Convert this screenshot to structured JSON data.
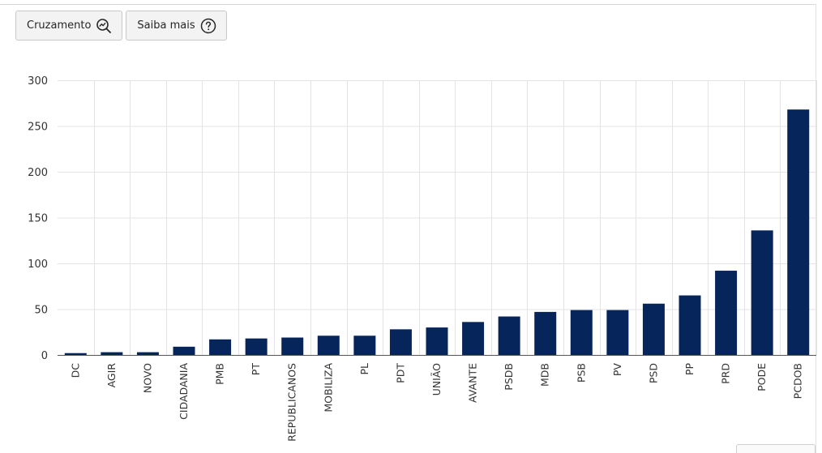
{
  "toolbar": {
    "cruzamento_label": "Cruzamento",
    "cruzamento_icon": "chart-search-icon",
    "saiba_mais_label": "Saiba mais",
    "saiba_mais_icon": "help-circle-icon"
  },
  "chart_data": {
    "type": "bar",
    "title": "",
    "xlabel": "",
    "ylabel": "",
    "ylim": [
      0,
      300
    ],
    "yticks": [
      0,
      50,
      100,
      150,
      200,
      250,
      300
    ],
    "grid": true,
    "bar_color": "#06265b",
    "categories": [
      "DC",
      "AGIR",
      "NOVO",
      "CIDADANIA",
      "PMB",
      "PT",
      "REPUBLICANOS",
      "MOBILIZA",
      "PL",
      "PDT",
      "UNIÃO",
      "AVANTE",
      "PSDB",
      "MDB",
      "PSB",
      "PV",
      "PSD",
      "PP",
      "PRD",
      "PODE",
      "PCDOB"
    ],
    "values": [
      2,
      3,
      3,
      9,
      17,
      18,
      19,
      21,
      21,
      28,
      30,
      36,
      42,
      47,
      49,
      49,
      56,
      65,
      92,
      136,
      268
    ]
  }
}
